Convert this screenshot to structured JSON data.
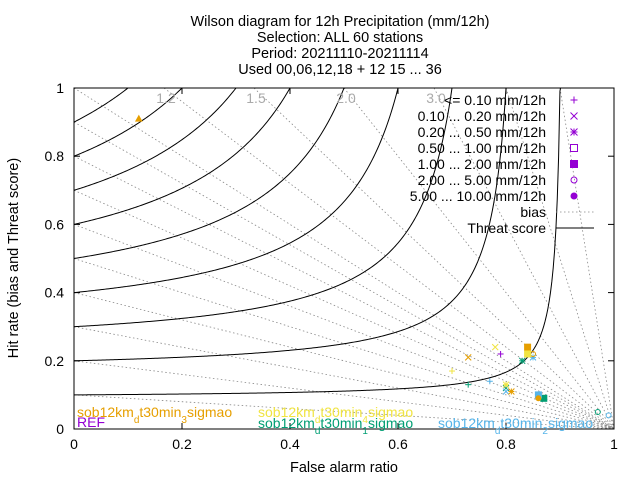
{
  "chart_data": {
    "type": "scatter",
    "title_lines": [
      "Wilson diagram  for 12h Precipitation (mm/12h)",
      "Selection: ALL     60 stations",
      "Period: 20211110-20211114",
      "Used 00,06,12,18 + 12 15 ... 36"
    ],
    "xlabel": "False alarm ratio",
    "ylabel": "Hit rate (bias and Threat score)",
    "xlim": [
      0,
      1
    ],
    "ylim": [
      0,
      1
    ],
    "x_ticks": [
      "0",
      "0.2",
      "0.4",
      "0.6",
      "0.8",
      "1"
    ],
    "y_ticks": [
      "0",
      "0.2",
      "0.4",
      "0.6",
      "0.8",
      "1"
    ],
    "bias_values": [
      1.2,
      1.5,
      2.0,
      3.0
    ],
    "bias_labels": [
      "1.2",
      "1.5",
      "2.0",
      "3.0"
    ],
    "threat_scores": [
      0.1,
      0.2,
      0.3,
      0.4,
      0.5,
      0.6,
      0.7,
      0.8,
      0.9
    ],
    "classes": [
      {
        "label": "<= 0.10 mm/12h",
        "marker": "plus"
      },
      {
        "label": "0.10 ... 0.20 mm/12h",
        "marker": "cross"
      },
      {
        "label": "0.20 ... 0.50 mm/12h",
        "marker": "star"
      },
      {
        "label": "0.50 ... 1.00 mm/12h",
        "marker": "square-open"
      },
      {
        "label": "1.00 ... 2.00 mm/12h",
        "marker": "square-filled"
      },
      {
        "label": "2.00 ... 5.00 mm/12h",
        "marker": "circle-open"
      },
      {
        "label": "5.00 ... 10.00 mm/12h",
        "marker": "circle-filled"
      }
    ],
    "legend_lines": [
      {
        "label": "bias",
        "style": "dotted"
      },
      {
        "label": "Threat score",
        "style": "solid"
      }
    ],
    "legend_color": "#9400d3",
    "legend_position": "top-right",
    "models": [
      {
        "name": "REF",
        "color": "#9400d3",
        "label_parts": [
          "REF"
        ],
        "points": [
          [
            0.79,
            0.22
          ]
        ]
      },
      {
        "name": "sob12km_d t30min_1 sigmao",
        "color": "#009e73",
        "label_parts": [
          "sob12km",
          "d",
          "t30min",
          "1",
          "sigmao"
        ],
        "points": [
          [
            0.73,
            0.13
          ],
          [
            0.8,
            0.12
          ],
          [
            0.83,
            0.2
          ],
          [
            0.87,
            0.09
          ],
          [
            0.97,
            0.05
          ]
        ]
      },
      {
        "name": "sob12km_d t30min_2 sigmao",
        "color": "#56b4e9",
        "label_parts": [
          "sob12km",
          "d",
          "t30min",
          "2",
          "sigmao"
        ],
        "points": [
          [
            0.77,
            0.14
          ],
          [
            0.8,
            0.11
          ],
          [
            0.85,
            0.21
          ],
          [
            0.86,
            0.1
          ],
          [
            0.99,
            0.04
          ]
        ]
      },
      {
        "name": "sob12km_d t30min_3 sigmao",
        "color": "#e69f00",
        "label_parts": [
          "sob12km",
          "d",
          "t30min",
          "3",
          "sigmao"
        ],
        "points": [
          [
            0.12,
            0.91
          ],
          [
            0.73,
            0.21
          ],
          [
            0.81,
            0.11
          ],
          [
            0.84,
            0.24
          ],
          [
            0.85,
            0.22
          ],
          [
            0.86,
            0.09
          ]
        ]
      },
      {
        "name": "sob12km_d t30min_4 sigmao",
        "color": "#f0e442",
        "label_parts": [
          "sob12km",
          "d",
          "t30min",
          "4",
          "sigmao"
        ],
        "points": [
          [
            0.7,
            0.17
          ],
          [
            0.78,
            0.24
          ],
          [
            0.8,
            0.13
          ],
          [
            0.84,
            0.22
          ]
        ]
      }
    ]
  }
}
